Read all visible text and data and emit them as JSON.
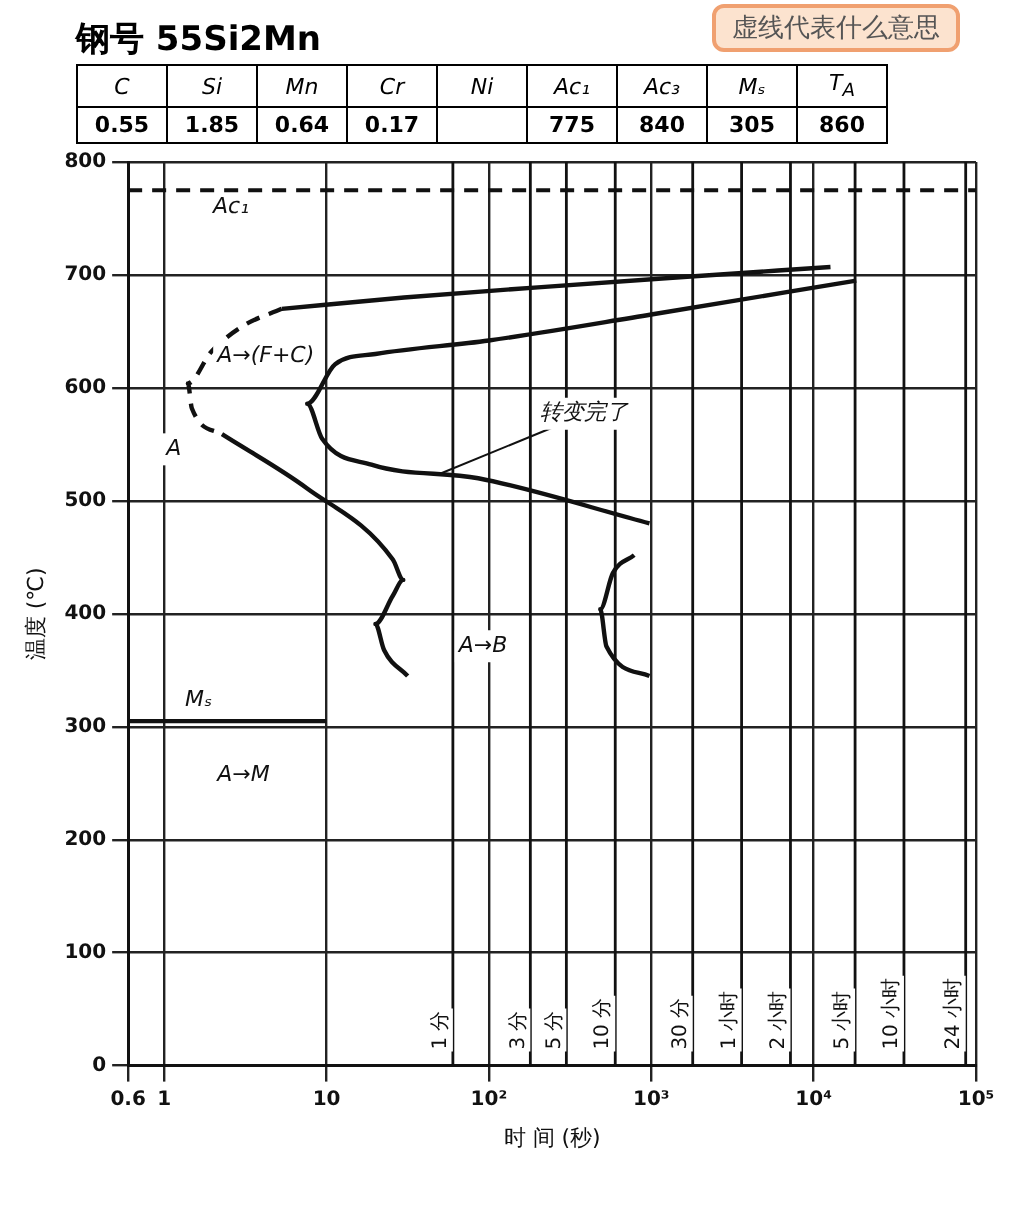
{
  "chart_data": [
    {
      "type": "other",
      "title": "钢号 55Si2Mn",
      "categories": [
        "C",
        "Si",
        "Mn",
        "Cr",
        "Ni",
        "Ac₁",
        "Ac₃",
        "Mₛ",
        "T$_{A}$"
      ],
      "values": [
        0.55,
        1.85,
        0.64,
        0.17,
        null,
        775,
        840,
        305,
        860
      ],
      "data_labels": true
    },
    {
      "type": "line",
      "xlabel": "时 间 (秒)",
      "ylabel": "温度 (℃)",
      "log": "x",
      "grid": true,
      "marker": "none",
      "xlim": [
        0.6,
        100000
      ],
      "ylim": [
        0,
        800
      ],
      "xticks": [
        0.6,
        1,
        10,
        {
          "value": 100,
          "label": "10²"
        },
        {
          "value": 1000,
          "label": "10³"
        },
        {
          "value": 10000,
          "label": "10⁴"
        },
        {
          "value": 100000,
          "label": "10⁵"
        }
      ],
      "yticks": [
        0,
        100,
        200,
        300,
        400,
        500,
        600,
        700,
        800
      ],
      "series": [
        {
          "color": "#111111",
          "line_style": "solid",
          "x": [
            5.3,
            30,
            200,
            1500,
            12700
          ],
          "values": [
            670,
            680,
            689,
            698,
            707
          ]
        },
        {
          "color": "#111111",
          "line_style": "dashed",
          "x": [
            5.3,
            3.07,
            1.95,
            1.4,
            1.48,
            2.27
          ],
          "values": [
            670,
            655,
            632,
            604,
            582,
            559
          ]
        },
        {
          "color": "#111111",
          "line_style": "solid",
          "x": [
            2.27,
            7.6,
            25.6,
            29.7,
            25.6,
            20,
            22.6,
            31.6
          ],
          "values": [
            559,
            511,
            448,
            430,
            416,
            391,
            368,
            345
          ]
        },
        {
          "color": "#111111",
          "line_style": "solid",
          "x": [
            18300,
            1000,
            100,
            20,
            11.3,
            7.6,
            9.4,
            18.9,
            86,
            975
          ],
          "values": [
            695,
            665,
            642,
            630,
            621,
            586,
            555,
            532,
            520,
            480
          ]
        },
        {
          "color": "#111111",
          "line_style": "solid",
          "x": [
            785,
            580,
            485,
            530,
            975
          ],
          "values": [
            452,
            436,
            404,
            371,
            345
          ]
        },
        {
          "color": "#111111",
          "line_style": "solid",
          "x": [
            0.6,
            10
          ],
          "values": [
            305,
            305
          ]
        }
      ],
      "ref_lines": [
        {
          "axis": "y",
          "value": 775,
          "label": "Ac₁",
          "line_style": "dashed"
        },
        {
          "axis": "x",
          "value": 60,
          "label": "1 分"
        },
        {
          "axis": "x",
          "value": 180,
          "label": "3 分"
        },
        {
          "axis": "x",
          "value": 300,
          "label": "5 分"
        },
        {
          "axis": "x",
          "value": 600,
          "label": "10 分"
        },
        {
          "axis": "x",
          "value": 1800,
          "label": "30 分"
        },
        {
          "axis": "x",
          "value": 3600,
          "label": "1 小时"
        },
        {
          "axis": "x",
          "value": 7200,
          "label": "2 小时"
        },
        {
          "axis": "x",
          "value": 18000,
          "label": "5 小时"
        },
        {
          "axis": "x",
          "value": 36000,
          "label": "10 小时"
        },
        {
          "axis": "x",
          "value": 86400,
          "label": "24 小时"
        }
      ],
      "annotations": [
        "A",
        "A→(F+C)",
        {
          "text": "转变完了",
          "x": 50,
          "y": 524
        },
        "A→B",
        "Mₛ",
        "A→M",
        "虚线代表什么意思"
      ]
    }
  ]
}
